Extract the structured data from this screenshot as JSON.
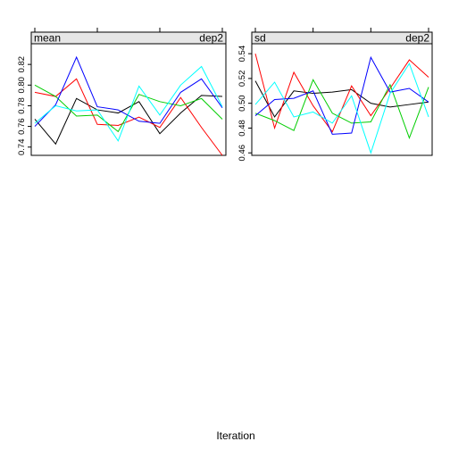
{
  "chart_data": {
    "type": "line",
    "xlabel": "Iteration",
    "grid": false,
    "x": [
      1,
      2,
      3,
      4,
      5,
      6,
      7,
      8,
      9,
      10
    ],
    "panels": [
      {
        "strip_left": "mean",
        "strip_right": "dep2",
        "ylim": [
          0.732,
          0.84
        ],
        "yticks": [
          0.74,
          0.76,
          0.78,
          0.8,
          0.82
        ],
        "ytick_labels": [
          "0.74",
          "0.76",
          "0.78",
          "0.80",
          "0.82"
        ],
        "series": [
          {
            "color": "#000000",
            "values": [
              0.767,
              0.743,
              0.787,
              0.776,
              0.773,
              0.784,
              0.753,
              0.773,
              0.79,
              0.789
            ]
          },
          {
            "color": "#ff0000",
            "values": [
              0.793,
              0.789,
              0.806,
              0.762,
              0.761,
              0.769,
              0.759,
              0.788,
              0.759,
              0.732
            ]
          },
          {
            "color": "#00cd00",
            "values": [
              0.8,
              0.789,
              0.77,
              0.771,
              0.755,
              0.791,
              0.784,
              0.78,
              0.787,
              0.767
            ]
          },
          {
            "color": "#0000ff",
            "values": [
              0.76,
              0.781,
              0.827,
              0.779,
              0.776,
              0.765,
              0.763,
              0.793,
              0.806,
              0.778
            ]
          },
          {
            "color": "#00ffff",
            "values": [
              0.763,
              0.78,
              0.775,
              0.776,
              0.746,
              0.799,
              0.771,
              0.8,
              0.818,
              0.779
            ]
          }
        ]
      },
      {
        "strip_left": "sd",
        "strip_right": "dep2",
        "ylim": [
          0.458,
          0.548
        ],
        "yticks": [
          0.46,
          0.48,
          0.5,
          0.52,
          0.54
        ],
        "ytick_labels": [
          "0.46",
          "0.48",
          "0.50",
          "0.52",
          "0.54"
        ],
        "series": [
          {
            "color": "#000000",
            "values": [
              0.518,
              0.489,
              0.51,
              0.508,
              0.509,
              0.511,
              0.5,
              0.497,
              0.499,
              0.501
            ]
          },
          {
            "color": "#ff0000",
            "values": [
              0.54,
              0.48,
              0.525,
              0.498,
              0.477,
              0.514,
              0.49,
              0.512,
              0.535,
              0.521
            ]
          },
          {
            "color": "#00cd00",
            "values": [
              0.492,
              0.486,
              0.478,
              0.519,
              0.492,
              0.484,
              0.485,
              0.515,
              0.472,
              0.513
            ]
          },
          {
            "color": "#0000ff",
            "values": [
              0.49,
              0.503,
              0.504,
              0.51,
              0.475,
              0.476,
              0.537,
              0.509,
              0.512,
              0.501
            ]
          },
          {
            "color": "#00ffff",
            "values": [
              0.499,
              0.517,
              0.489,
              0.493,
              0.484,
              0.506,
              0.46,
              0.508,
              0.532,
              0.489
            ]
          }
        ]
      }
    ]
  }
}
